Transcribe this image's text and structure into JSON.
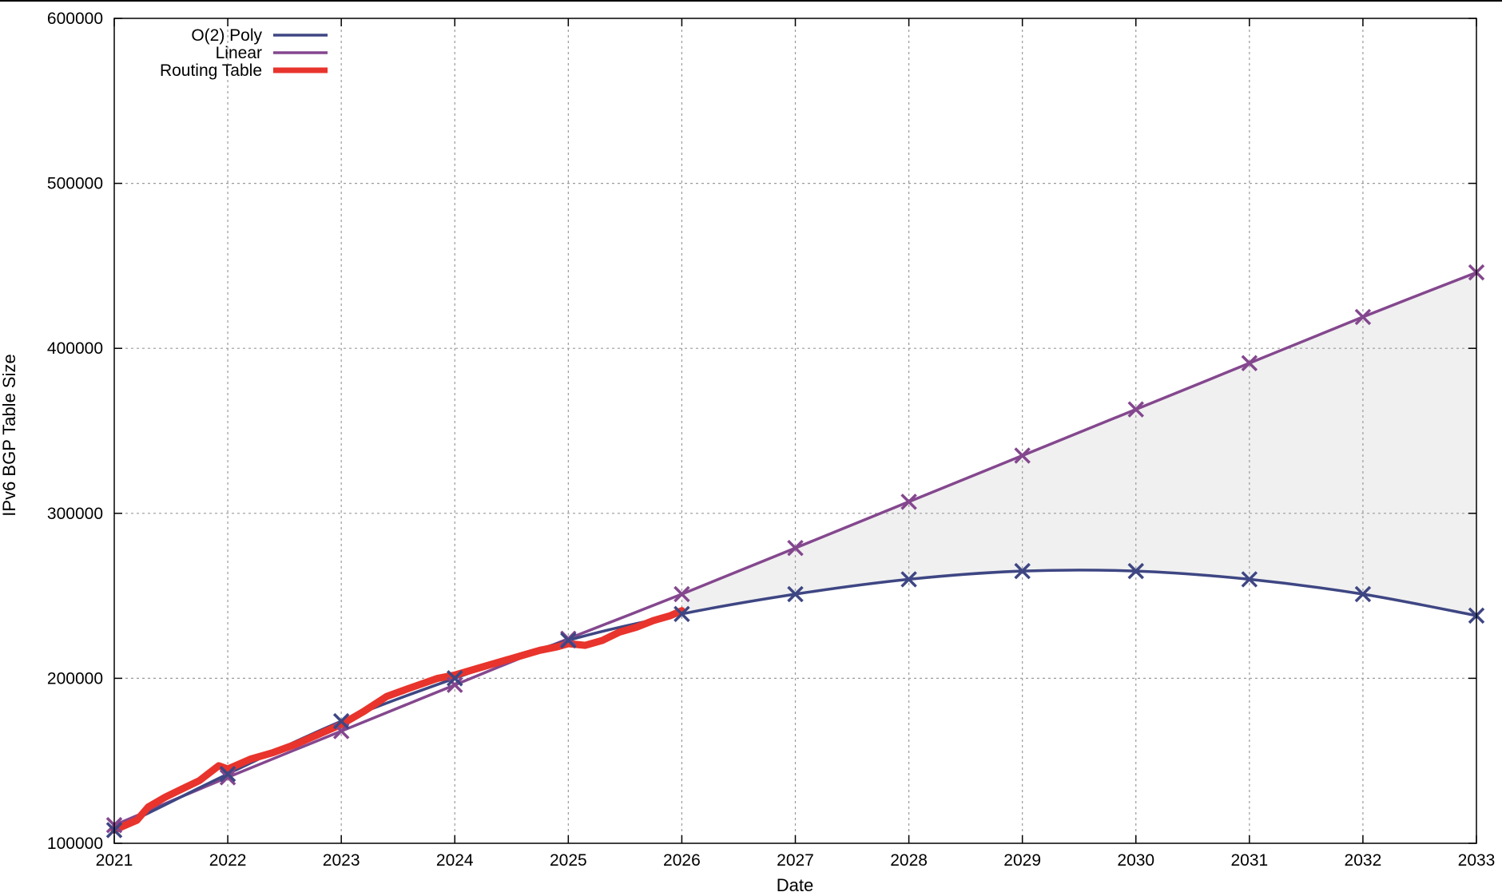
{
  "chart_data": {
    "type": "line",
    "title": "",
    "xlabel": "Date",
    "ylabel": "IPv6 BGP Table Size",
    "xlim": [
      2021,
      2033
    ],
    "ylim": [
      100000,
      600000
    ],
    "x_ticks": [
      "2021",
      "2022",
      "2023",
      "2024",
      "2025",
      "2026",
      "2027",
      "2028",
      "2029",
      "2030",
      "2031",
      "2032",
      "2033"
    ],
    "y_ticks": [
      "100000",
      "200000",
      "300000",
      "400000",
      "500000",
      "600000"
    ],
    "grid": true,
    "legend_position": "top-left",
    "projection_shading": {
      "from_x": 2026,
      "to_x": 2033,
      "between": [
        "Linear",
        "O(2) Poly"
      ],
      "color": "#f0f0f0"
    },
    "series": [
      {
        "name": "O(2) Poly",
        "color": "#3e4683",
        "marker": "x",
        "x": [
          2021,
          2022,
          2023,
          2024,
          2025,
          2026,
          2027,
          2028,
          2029,
          2030,
          2031,
          2032,
          2033
        ],
        "values": [
          108000,
          142000,
          174000,
          200000,
          223000,
          239000,
          251000,
          260000,
          265000,
          265000,
          260000,
          251000,
          238000
        ]
      },
      {
        "name": "Linear",
        "color": "#84478e",
        "marker": "x",
        "x": [
          2021,
          2022,
          2023,
          2024,
          2025,
          2026,
          2027,
          2028,
          2029,
          2030,
          2031,
          2032,
          2033
        ],
        "values": [
          111000,
          140000,
          168000,
          196000,
          224000,
          251000,
          279000,
          307000,
          335000,
          363000,
          391000,
          419000,
          446000
        ]
      },
      {
        "name": "Routing Table",
        "color": "#e8342c",
        "marker": "none",
        "x": [
          2021.0,
          2021.1,
          2021.2,
          2021.3,
          2021.45,
          2021.6,
          2021.75,
          2021.92,
          2022.0,
          2022.2,
          2022.4,
          2022.6,
          2022.8,
          2023.0,
          2023.2,
          2023.4,
          2023.6,
          2023.85,
          2024.0,
          2024.2,
          2024.4,
          2024.6,
          2024.75,
          2024.9,
          2025.0,
          2025.15,
          2025.3,
          2025.45,
          2025.6,
          2025.75,
          2025.9,
          2026.0
        ],
        "values": [
          108000,
          111000,
          114000,
          122000,
          128000,
          133000,
          138000,
          147000,
          145000,
          151000,
          155000,
          160000,
          166000,
          172000,
          180000,
          189000,
          194000,
          200000,
          202000,
          206000,
          210000,
          214000,
          217000,
          219000,
          221000,
          220000,
          223000,
          228000,
          231000,
          235000,
          238000,
          241000
        ]
      }
    ]
  }
}
